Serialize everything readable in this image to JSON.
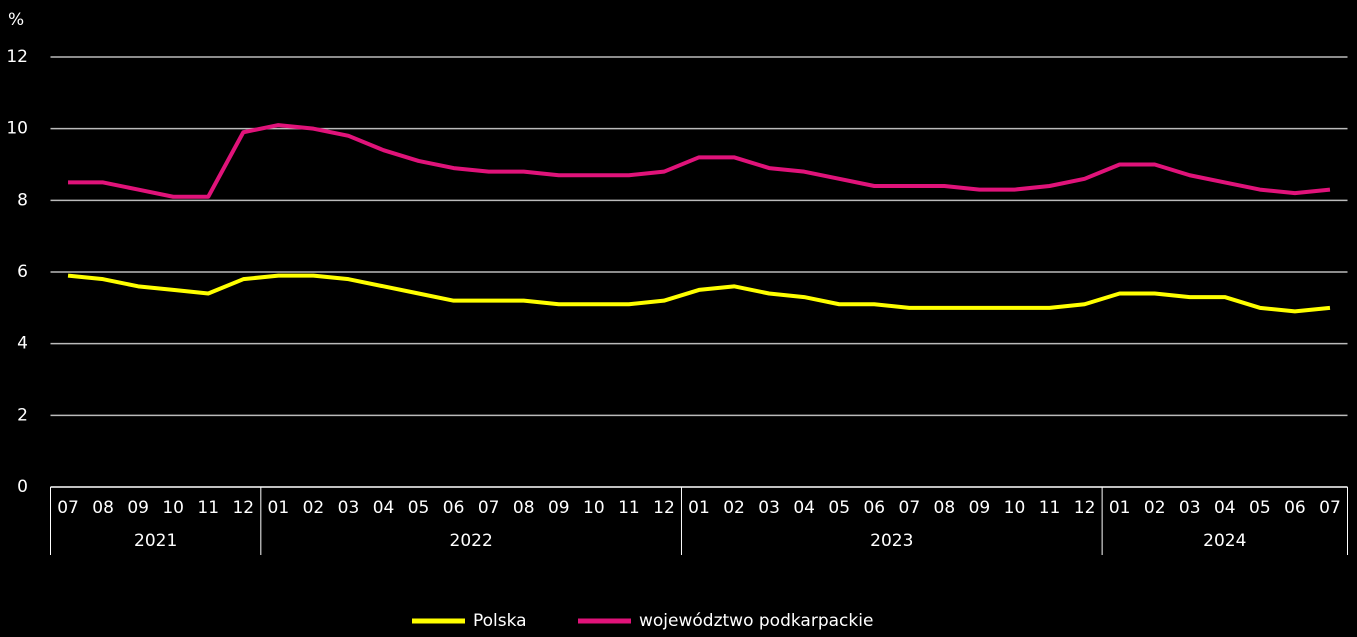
{
  "chart_data": {
    "type": "line",
    "y_label": "%",
    "categories": [
      "07",
      "08",
      "09",
      "10",
      "11",
      "12",
      "01",
      "02",
      "03",
      "04",
      "05",
      "06",
      "07",
      "08",
      "09",
      "10",
      "11",
      "12",
      "01",
      "02",
      "03",
      "04",
      "05",
      "06",
      "07",
      "08",
      "09",
      "10",
      "11",
      "12",
      "01",
      "02",
      "03",
      "04",
      "05",
      "06",
      "07"
    ],
    "category_groups": [
      {
        "label": "2021",
        "count": 6
      },
      {
        "label": "2022",
        "count": 12
      },
      {
        "label": "2023",
        "count": 12
      },
      {
        "label": "2024",
        "count": 7
      }
    ],
    "series": [
      {
        "name": "Polska",
        "color": "#ffff00",
        "values": [
          5.9,
          5.8,
          5.6,
          5.5,
          5.4,
          5.8,
          5.9,
          5.9,
          5.8,
          5.6,
          5.4,
          5.2,
          5.2,
          5.2,
          5.1,
          5.1,
          5.1,
          5.2,
          5.5,
          5.6,
          5.4,
          5.3,
          5.1,
          5.1,
          5.0,
          5.0,
          5.0,
          5.0,
          5.0,
          5.1,
          5.4,
          5.4,
          5.3,
          5.3,
          5.0,
          4.9,
          5.0
        ]
      },
      {
        "name": "województwo podkarpackie",
        "color": "#e0137a",
        "values": [
          8.5,
          8.5,
          8.3,
          8.1,
          8.1,
          9.9,
          10.1,
          10.0,
          9.8,
          9.4,
          9.1,
          8.9,
          8.8,
          8.8,
          8.7,
          8.7,
          8.7,
          8.8,
          9.2,
          9.2,
          8.9,
          8.8,
          8.6,
          8.4,
          8.4,
          8.4,
          8.3,
          8.3,
          8.4,
          8.6,
          9.0,
          9.0,
          8.7,
          8.5,
          8.3,
          8.2,
          8.3
        ]
      }
    ],
    "ylim": [
      0,
      12
    ],
    "yticks": [
      0,
      2,
      4,
      6,
      8,
      10,
      12
    ],
    "grid": true,
    "legend": "bottom"
  }
}
